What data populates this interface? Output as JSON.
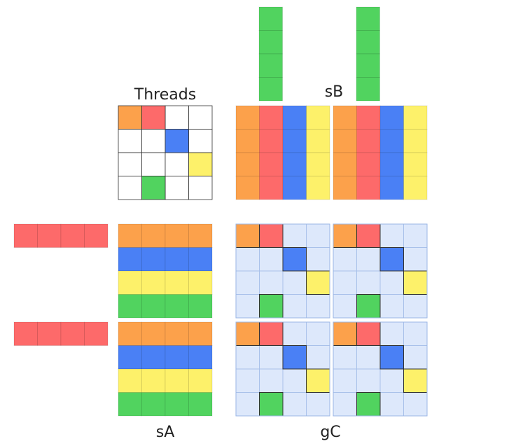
{
  "labels": {
    "threads": "Threads",
    "sb": "sB",
    "sa": "sA",
    "gc": "gC"
  },
  "colors": {
    "orange": "#fca14b",
    "red": "#fd6a6a",
    "blue": "#4a80f5",
    "yellow": "#fdf16a",
    "green": "#51d35f",
    "white": "#ffffff",
    "light": "#dde8fb"
  },
  "matrices": {
    "threads": [
      [
        "orange",
        "red",
        "white",
        "white"
      ],
      [
        "white",
        "white",
        "blue",
        "white"
      ],
      [
        "white",
        "white",
        "white",
        "yellow"
      ],
      [
        "white",
        "green",
        "white",
        "white"
      ]
    ],
    "sb_tile": [
      [
        "orange",
        "red",
        "blue",
        "yellow"
      ],
      [
        "orange",
        "red",
        "blue",
        "yellow"
      ],
      [
        "orange",
        "red",
        "blue",
        "yellow"
      ],
      [
        "orange",
        "red",
        "blue",
        "yellow"
      ]
    ],
    "sa_tile": [
      [
        "orange",
        "orange",
        "orange",
        "orange"
      ],
      [
        "blue",
        "blue",
        "blue",
        "blue"
      ],
      [
        "yellow",
        "yellow",
        "yellow",
        "yellow"
      ],
      [
        "green",
        "green",
        "green",
        "green"
      ]
    ],
    "gc_tile": [
      [
        "orange",
        "red",
        "light",
        "light"
      ],
      [
        "light",
        "light",
        "blue",
        "light"
      ],
      [
        "light",
        "light",
        "light",
        "yellow"
      ],
      [
        "light",
        "green",
        "light",
        "light"
      ]
    ],
    "a_row": [
      [
        "red",
        "red",
        "red",
        "red"
      ]
    ],
    "b_col": [
      [
        "green"
      ],
      [
        "green"
      ],
      [
        "green"
      ],
      [
        "green"
      ]
    ]
  }
}
